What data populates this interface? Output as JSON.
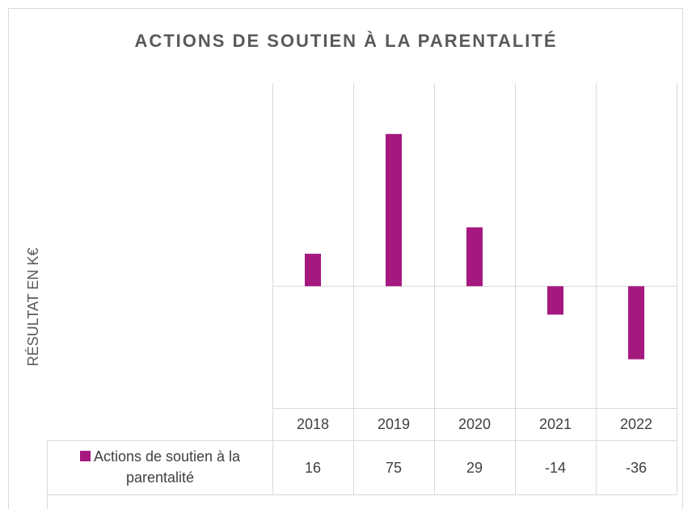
{
  "chart_data": {
    "type": "bar",
    "title": "ACTIONS DE SOUTIEN À LA PARENTALITÉ",
    "y_label": "RÉSULTAT EN K€",
    "categories": [
      "2018",
      "2019",
      "2020",
      "2021",
      "2022"
    ],
    "series": [
      {
        "name": "Actions de soutien à la parentalité",
        "color": "#a5197f",
        "values": [
          16,
          75,
          29,
          -14,
          -36
        ]
      }
    ],
    "ylim": [
      -60,
      100
    ],
    "data_table": true
  }
}
